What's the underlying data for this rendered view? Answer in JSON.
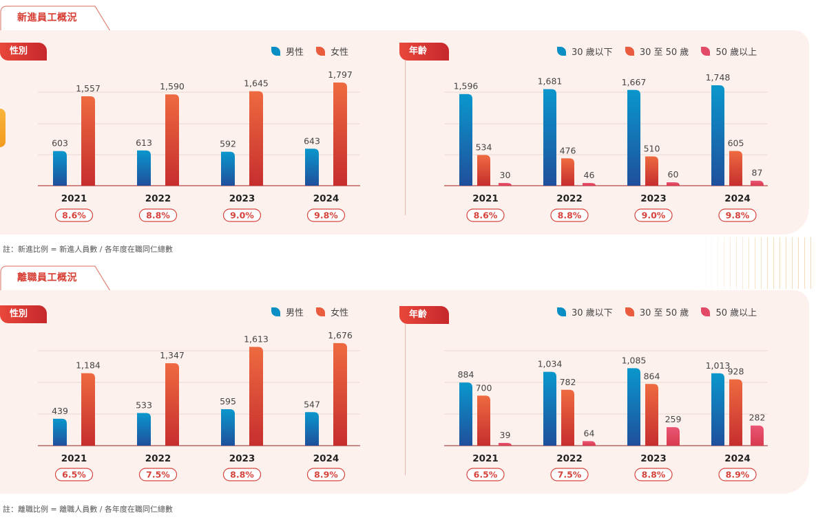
{
  "sections": [
    {
      "title": "新進員工概況",
      "note": "註：新進比例 = 新進人員數 / 各年度在職同仁總數",
      "gender_label": "性別",
      "age_label": "年齡"
    },
    {
      "title": "離職員工概況",
      "note": "註：離職比例 = 離職人員數 / 各年度在職同仁總數",
      "gender_label": "性別",
      "age_label": "年齡"
    }
  ],
  "legend": {
    "male": "男性",
    "female": "女性",
    "under30": "30 歲以下",
    "age30to50": "30 至 50 歲",
    "over50": "50 歲以上"
  },
  "colors": {
    "male": "#0a8fc4",
    "female": "#e95c3e",
    "over50": "#e24a68",
    "accent": "#d63a2f",
    "panel": "#fdf1ee"
  },
  "chart_data": [
    {
      "type": "bar",
      "categories": [
        "2021",
        "2022",
        "2023",
        "2024"
      ],
      "rates": [
        "8.6%",
        "8.8%",
        "9.0%",
        "9.8%"
      ],
      "series": [
        {
          "name": "男性",
          "values": [
            603,
            613,
            592,
            643
          ]
        },
        {
          "name": "女性",
          "values": [
            1557,
            1590,
            1645,
            1797
          ]
        }
      ],
      "ylim": [
        0,
        2000
      ]
    },
    {
      "type": "bar",
      "categories": [
        "2021",
        "2022",
        "2023",
        "2024"
      ],
      "rates": [
        "8.6%",
        "8.8%",
        "9.0%",
        "9.8%"
      ],
      "series": [
        {
          "name": "30 歲以下",
          "values": [
            1596,
            1681,
            1667,
            1748
          ]
        },
        {
          "name": "30 至 50 歲",
          "values": [
            534,
            476,
            510,
            605
          ]
        },
        {
          "name": "50 歲以上",
          "values": [
            30,
            46,
            60,
            87
          ]
        }
      ],
      "ylim": [
        0,
        2000
      ]
    },
    {
      "type": "bar",
      "categories": [
        "2021",
        "2022",
        "2023",
        "2024"
      ],
      "rates": [
        "6.5%",
        "7.5%",
        "8.8%",
        "8.9%"
      ],
      "series": [
        {
          "name": "男性",
          "values": [
            439,
            533,
            595,
            547
          ]
        },
        {
          "name": "女性",
          "values": [
            1184,
            1347,
            1613,
            1676
          ]
        }
      ],
      "ylim": [
        0,
        2000
      ]
    },
    {
      "type": "bar",
      "categories": [
        "2021",
        "2022",
        "2023",
        "2024"
      ],
      "rates": [
        "6.5%",
        "7.5%",
        "8.8%",
        "8.9%"
      ],
      "series": [
        {
          "name": "30 歲以下",
          "values": [
            884,
            1034,
            1085,
            1013
          ]
        },
        {
          "name": "30 至 50 歲",
          "values": [
            700,
            782,
            864,
            928
          ]
        },
        {
          "name": "50 歲以上",
          "values": [
            39,
            64,
            259,
            282
          ]
        }
      ],
      "ylim": [
        0,
        1500
      ]
    }
  ]
}
